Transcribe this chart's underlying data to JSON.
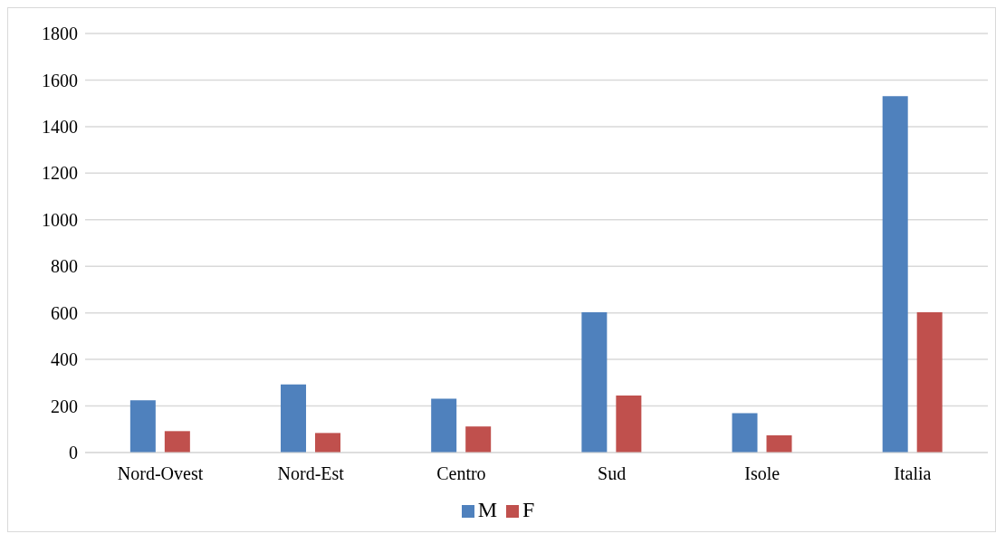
{
  "chart_data": {
    "type": "bar",
    "categories": [
      "Nord-Ovest",
      "Nord-Est",
      "Centro",
      "Sud",
      "Isole",
      "Italia"
    ],
    "series": [
      {
        "name": "M",
        "color": "#4f81bd",
        "values": [
          225,
          293,
          231,
          603,
          169,
          1531
        ]
      },
      {
        "name": "F",
        "color": "#c0504d",
        "values": [
          92,
          84,
          112,
          245,
          74,
          603
        ]
      }
    ],
    "ylim": [
      0,
      1800
    ],
    "yticks": [
      0,
      200,
      400,
      600,
      800,
      1000,
      1200,
      1400,
      1600,
      1800
    ],
    "grid": "y",
    "legend": "bottom"
  }
}
